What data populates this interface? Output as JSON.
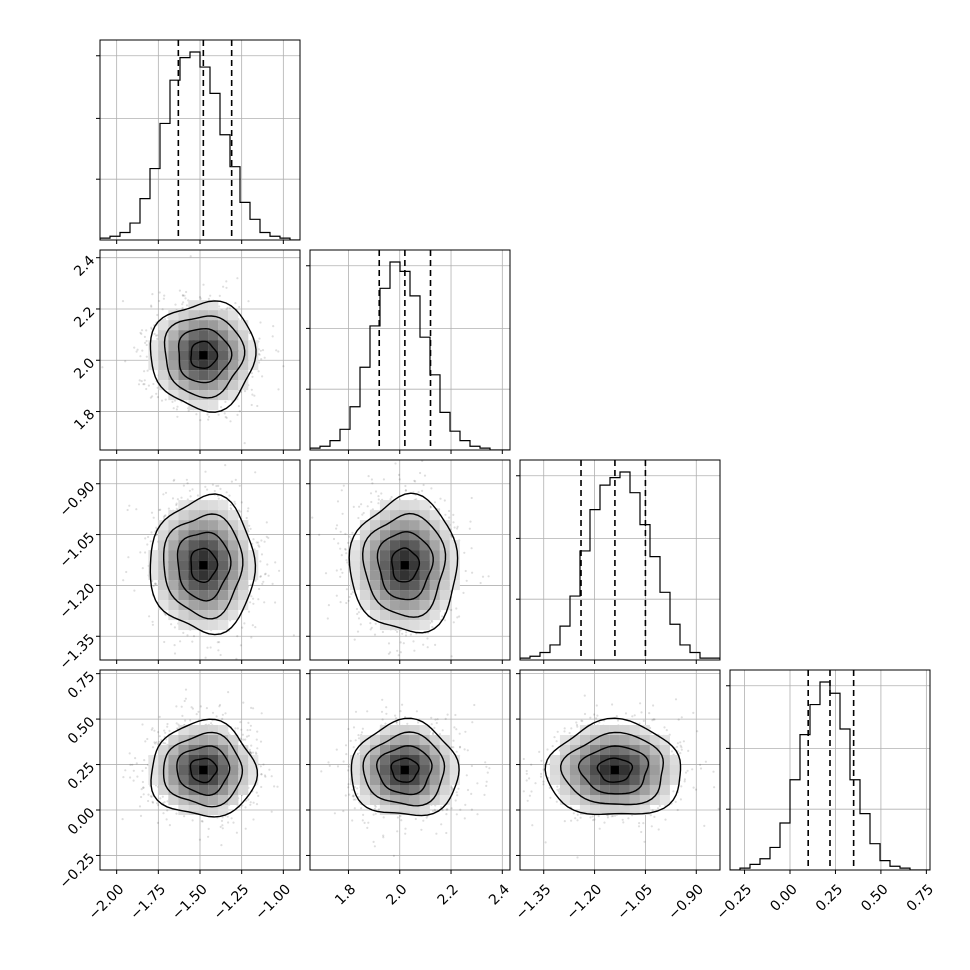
{
  "chart_data": {
    "type": "corner",
    "description_params": 4,
    "params": [
      {
        "range": [
          -2.1,
          -0.9
        ],
        "ticks": [
          "−2.00",
          "−1.75",
          "−1.50",
          "−1.25",
          "−1.00"
        ],
        "tick_values": [
          -2.0,
          -1.75,
          -1.5,
          -1.25,
          -1.0
        ],
        "quantiles": [
          -1.63,
          -1.48,
          -1.31
        ],
        "mean": -1.48,
        "sigma": 0.15
      },
      {
        "range": [
          1.65,
          2.43
        ],
        "ticks": [
          "1.8",
          "2.0",
          "2.2",
          "2.4"
        ],
        "tick_values": [
          1.8,
          2.0,
          2.2,
          2.4
        ],
        "quantiles": [
          1.92,
          2.02,
          2.12
        ],
        "mean": 2.02,
        "sigma": 0.1
      },
      {
        "range": [
          -1.42,
          -0.83
        ],
        "ticks": [
          "−1.35",
          "−1.20",
          "−1.05",
          "−0.90"
        ],
        "tick_values": [
          -1.35,
          -1.2,
          -1.05,
          -0.9
        ],
        "quantiles": [
          -1.24,
          -1.14,
          -1.05
        ],
        "mean": -1.14,
        "sigma": 0.095
      },
      {
        "range": [
          -0.33,
          0.77
        ],
        "ticks": [
          "−0.25",
          "0.00",
          "0.25",
          "0.50",
          "0.75"
        ],
        "tick_values": [
          -0.25,
          0.0,
          0.25,
          0.5,
          0.75
        ],
        "quantiles": [
          0.1,
          0.22,
          0.35
        ],
        "mean": 0.22,
        "sigma": 0.125
      }
    ],
    "histograms": [
      [
        0.01,
        0.02,
        0.04,
        0.09,
        0.22,
        0.38,
        0.62,
        0.85,
        0.97,
        1.0,
        0.92,
        0.78,
        0.56,
        0.39,
        0.2,
        0.11,
        0.04,
        0.02,
        0.01,
        0.0
      ],
      [
        0.01,
        0.02,
        0.05,
        0.11,
        0.23,
        0.44,
        0.66,
        0.86,
        1.0,
        0.95,
        0.82,
        0.6,
        0.4,
        0.2,
        0.1,
        0.05,
        0.02,
        0.01,
        0.0,
        0.0
      ],
      [
        0.01,
        0.02,
        0.04,
        0.08,
        0.18,
        0.34,
        0.58,
        0.8,
        0.93,
        0.97,
        1.0,
        0.89,
        0.72,
        0.55,
        0.36,
        0.19,
        0.08,
        0.04,
        0.01,
        0.01
      ],
      [
        0.0,
        0.01,
        0.03,
        0.06,
        0.12,
        0.25,
        0.48,
        0.72,
        0.88,
        1.0,
        0.94,
        0.75,
        0.48,
        0.3,
        0.14,
        0.05,
        0.02,
        0.01,
        0.0,
        0.0
      ]
    ],
    "contour_levels": [
      0.39,
      0.86,
      0.99
    ],
    "grid": true,
    "xlabels_visible_bottom_row": true,
    "ylabels_visible_first_column": true
  }
}
